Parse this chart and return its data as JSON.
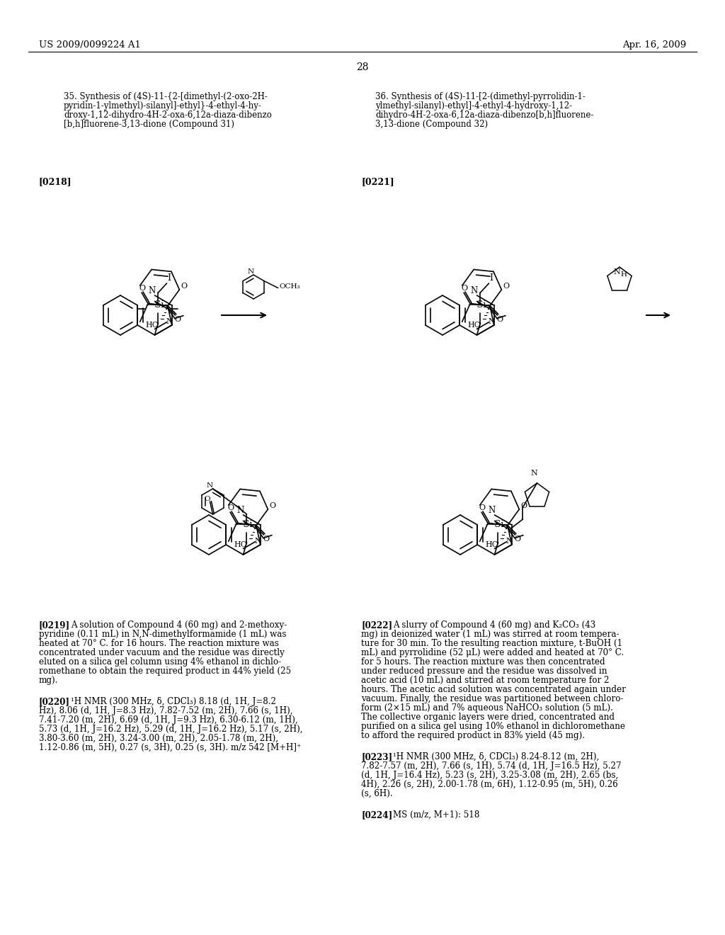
{
  "bg_color": "#ffffff",
  "header_left": "US 2009/0099224 A1",
  "header_right": "Apr. 16, 2009",
  "page_number": "28",
  "title35_line1": "35. Synthesis of (4S)-11-{2-[dimethyl-(2-oxo-2H-",
  "title35_line2": "pyridin-1-ylmethyl)-silanyl]-ethyl}-4-ethyl-4-hy-",
  "title35_line3": "droxy-1,12-dihydro-4H-2-oxa-6,12a-diaza-dibenzo",
  "title35_line4": "[b,h]fluorene-3,13-dione (Compound 31)",
  "title36_line1": "36. Synthesis of (4S)-11-[2-(dimethyl-pyrrolidin-1-",
  "title36_line2": "ylmethyl-silanyl)-ethyl]-4-ethyl-4-hydroxy-1,12-",
  "title36_line3": "dihydro-4H-2-oxa-6,12a-diaza-dibenzo[b,h]fluorene-",
  "title36_line4": "3,13-dione (Compound 32)",
  "ref218": "[0218]",
  "ref221": "[0221]",
  "p219_bold": "[0219]",
  "p219_text": "   A solution of Compound 4 (60 mg) and 2-methoxy-\npyridine (0.11 mL) in N,N-dimethylformamide (1 mL) was\nheated at 70° C. for 16 hours. The reaction mixture was\nconcentrated under vacuum and the residue was directly\neluted on a silica gel column using 4% ethanol in dichlo-\nromethane to obtain the required product in 44% yield (25\nmg).",
  "p220_bold": "[0220]",
  "p220_text": "   ¹H NMR (300 MHz, δ, CDCl₃) 8.18 (d, 1H, J=8.2\nHz), 8.06 (d, 1H, J=8.3 Hz), 7.82-7.52 (m, 2H), 7.66 (s, 1H),\n7.41-7.20 (m, 2H), 6.69 (d, 1H, J=9.3 Hz), 6.30-6.12 (m, 1H),\n5.73 (d, 1H, J=16.2 Hz), 5.29 (d, 1H, J=16.2 Hz), 5.17 (s, 2H),\n3.80-3.60 (m, 2H), 3.24-3.00 (m, 2H), 2.05-1.78 (m, 2H),\n1.12-0.86 (m, 5H), 0.27 (s, 3H), 0.25 (s, 3H). m/z 542 [M+H]⁺",
  "p222_bold": "[0222]",
  "p222_text": "   A slurry of Compound 4 (60 mg) and K₂CO₃ (43\nmg) in deionized water (1 mL) was stirred at room tempera-\nture for 30 min. To the resulting reaction mixture, t-BuOH (1\nmL) and pyrrolidine (52 μL) were added and heated at 70° C.\nfor 5 hours. The reaction mixture was then concentrated\nunder reduced pressure and the residue was dissolved in\nacetic acid (10 mL) and stirred at room temperature for 2\nhours. The acetic acid solution was concentrated again under\nvacuum. Finally, the residue was partitioned between chloro-\nform (2×15 mL) and 7% aqueous NaHCO₃ solution (5 mL).\nThe collective organic layers were dried, concentrated and\npurified on a silica gel using 10% ethanol in dichloromethane\nto afford the required product in 83% yield (45 mg).",
  "p223_bold": "[0223]",
  "p223_text": "   ¹H NMR (300 MHz, δ, CDCl₃) 8.24-8.12 (m, 2H),\n7.82-7.57 (m, 2H), 7.66 (s, 1H), 5.74 (d, 1H, J=16.5 Hz), 5.27\n(d, 1H, J=16.4 Hz), 5.23 (s, 2H), 3.25-3.08 (m, 2H), 2.65 (bs,\n4H), 2.26 (s, 2H), 2.00-1.78 (m, 6H), 1.12-0.95 (m, 5H), 0.26\n(s, 6H).",
  "p224_bold": "[0224]",
  "p224_text": "   MS (m/z, M+1): 518"
}
